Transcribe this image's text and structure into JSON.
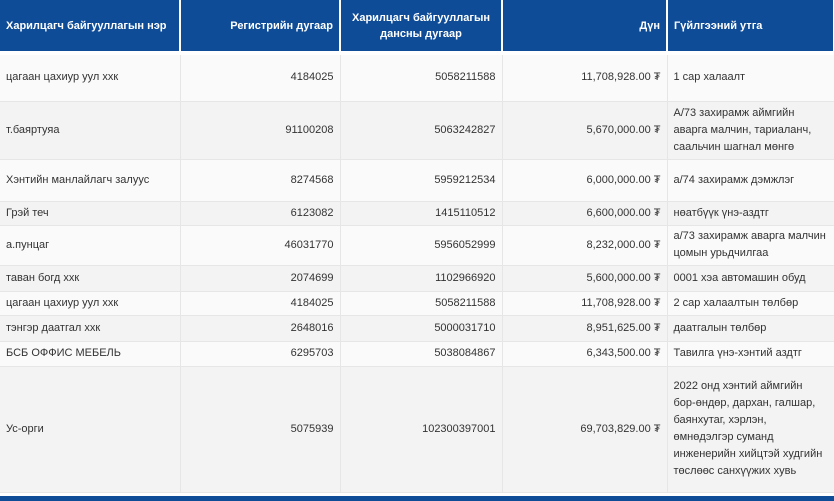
{
  "table": {
    "headers": [
      "Харилцагч байгууллагын нэр",
      "Регистрийн дугаар",
      "Харилцагч байгууллагын дансны дугаар",
      "Дүн",
      "Гүйлгээний утга"
    ],
    "rows": [
      {
        "name": "цагаан цахиур уул ххк",
        "reg": "4184025",
        "account": "5058211588",
        "amount": "11,708,928.00 ₮",
        "desc": "1 сар халаалт"
      },
      {
        "name": "т.баяртуяа",
        "reg": "91100208",
        "account": "5063242827",
        "amount": "5,670,000.00 ₮",
        "desc": "А/73 захирамж аймгийн аварга малчин, тариаланч, саальчин шагнал мөнгө"
      },
      {
        "name": "Хэнтийн манлайлагч залуус",
        "reg": "8274568",
        "account": "5959212534",
        "amount": "6,000,000.00 ₮",
        "desc": "а/74 захирамж дэмжлэг"
      },
      {
        "name": "Грэй теч",
        "reg": "6123082",
        "account": "1415110512",
        "amount": "6,600,000.00 ₮",
        "desc": "нөатбүүк үнэ-аздтг"
      },
      {
        "name": "а.пунцаг",
        "reg": "46031770",
        "account": "5956052999",
        "amount": "8,232,000.00 ₮",
        "desc": "а/73 захирамж аварга малчин цомын урьдчилгаа"
      },
      {
        "name": "таван богд ххк",
        "reg": "2074699",
        "account": "1102966920",
        "amount": "5,600,000.00 ₮",
        "desc": "0001 хэа автомашин обуд"
      },
      {
        "name": "цагаан цахиур уул ххк",
        "reg": "4184025",
        "account": "5058211588",
        "amount": "11,708,928.00 ₮",
        "desc": "2 сар халаалтын төлбөр"
      },
      {
        "name": "тэнгэр даатгал ххк",
        "reg": "2648016",
        "account": "5000031710",
        "amount": "8,951,625.00 ₮",
        "desc": "даатгалын төлбөр"
      },
      {
        "name": "БСБ ОФФИС МЕБЕЛЬ",
        "reg": "6295703",
        "account": "5038084867",
        "amount": "6,343,500.00 ₮",
        "desc": "Тавилга үнэ-хэнтий аздтг"
      },
      {
        "name": "Ус-орги",
        "reg": "5075939",
        "account": "102300397001",
        "amount": "69,703,829.00 ₮",
        "desc": "2022 онд хэнтий аймгийн бор-өндөр, дархан, галшар, баянхутаг, хэрлэн, өмнөдэлгэр суманд инженерийн хийцтэй худгийн төслөөс санхүүжих хувь"
      }
    ]
  }
}
